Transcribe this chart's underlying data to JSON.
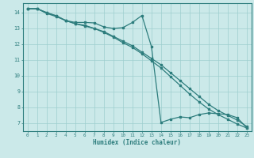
{
  "bg_color": "#cbe9e9",
  "line_color": "#2d7d7d",
  "grid_color": "#9ecece",
  "xlabel": "Humidex (Indice chaleur)",
  "xlim": [
    -0.5,
    23.5
  ],
  "ylim": [
    6.5,
    14.6
  ],
  "xticks": [
    0,
    1,
    2,
    3,
    4,
    5,
    6,
    7,
    8,
    9,
    10,
    11,
    12,
    13,
    14,
    15,
    16,
    17,
    18,
    19,
    20,
    21,
    22,
    23
  ],
  "yticks": [
    7,
    8,
    9,
    10,
    11,
    12,
    13,
    14
  ],
  "line1_x": [
    0,
    1,
    2,
    3,
    4,
    5,
    6,
    7,
    8,
    9,
    10,
    11,
    12,
    13,
    14,
    15,
    16,
    17,
    18,
    19,
    20,
    21,
    22,
    23
  ],
  "line1_y": [
    14.25,
    14.25,
    14.0,
    13.8,
    13.5,
    13.3,
    13.2,
    13.0,
    12.8,
    12.5,
    12.2,
    11.9,
    11.5,
    11.1,
    10.7,
    10.2,
    9.7,
    9.2,
    8.7,
    8.2,
    7.8,
    7.5,
    7.2,
    6.8
  ],
  "line2_x": [
    0,
    1,
    2,
    3,
    4,
    5,
    6,
    7,
    8,
    9,
    10,
    11,
    12,
    13,
    14,
    15,
    16,
    17,
    18,
    19,
    20,
    21,
    22,
    23
  ],
  "line2_y": [
    14.25,
    14.25,
    13.95,
    13.75,
    13.5,
    13.3,
    13.15,
    13.0,
    12.75,
    12.45,
    12.1,
    11.8,
    11.4,
    10.95,
    10.5,
    9.95,
    9.4,
    8.85,
    8.35,
    7.9,
    7.55,
    7.25,
    6.95,
    6.7
  ],
  "line3_x": [
    0,
    1,
    2,
    3,
    4,
    5,
    6,
    7,
    8,
    9,
    10,
    11,
    12,
    13,
    14,
    15,
    16,
    17,
    18,
    19,
    20,
    21,
    22,
    23
  ],
  "line3_y": [
    14.25,
    14.25,
    14.0,
    13.8,
    13.5,
    13.38,
    13.38,
    13.35,
    13.1,
    13.0,
    13.05,
    13.38,
    13.82,
    11.85,
    7.05,
    7.25,
    7.4,
    7.35,
    7.55,
    7.65,
    7.6,
    7.55,
    7.35,
    6.72
  ]
}
